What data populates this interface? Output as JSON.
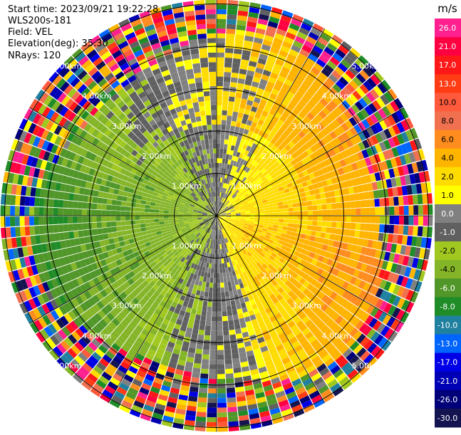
{
  "header": {
    "start_time": "Start time: 2023/09/21 19:22:28",
    "instrument": "WLS200s-181",
    "field": "Field: VEL",
    "elevation": "Elevation(deg): 35.30",
    "nrays": "NRays: 120"
  },
  "chart_data": {
    "type": "heatmap",
    "subtype": "polar PPI scan",
    "field": "VEL",
    "units": "m/s",
    "nrays": 120,
    "range_rings_km": [
      1,
      2,
      3,
      4,
      5
    ],
    "range_ring_labels": [
      "1.00km",
      "2.00km",
      "3.00km",
      "4.00km",
      "5.00km"
    ],
    "spoke_angles_deg": [
      0,
      30,
      60,
      90,
      120,
      150,
      180,
      210,
      240,
      270,
      300,
      330
    ],
    "pattern": "near-field: green (negative, approaching) on west side, yellow/orange (positive, receding) on east side; outer ranges noisy",
    "colorbar": {
      "unit_label": "m/s",
      "tick_labels": [
        "26.0",
        "21.0",
        "17.0",
        "13.0",
        "10.0",
        "8.0",
        "6.0",
        "4.0",
        "2.0",
        "1.0",
        "0.0",
        "-1.0",
        "-2.0",
        "-4.0",
        "-6.0",
        "-8.0",
        "-10.0",
        "-13.0",
        "-17.0",
        "-21.0",
        "-26.0",
        "-30.0"
      ],
      "colors": [
        "#ff2090",
        "#ff0040",
        "#ff1818",
        "#ff3c14",
        "#ff5a3c",
        "#f07050",
        "#ff8c1e",
        "#ffb400",
        "#ffdc00",
        "#ffff00",
        "#808080",
        "#606060",
        "#a0c820",
        "#84b428",
        "#509628",
        "#208c28",
        "#2080a0",
        "#0064ff",
        "#0000e6",
        "#0000b4",
        "#000078",
        "#141450"
      ]
    }
  }
}
